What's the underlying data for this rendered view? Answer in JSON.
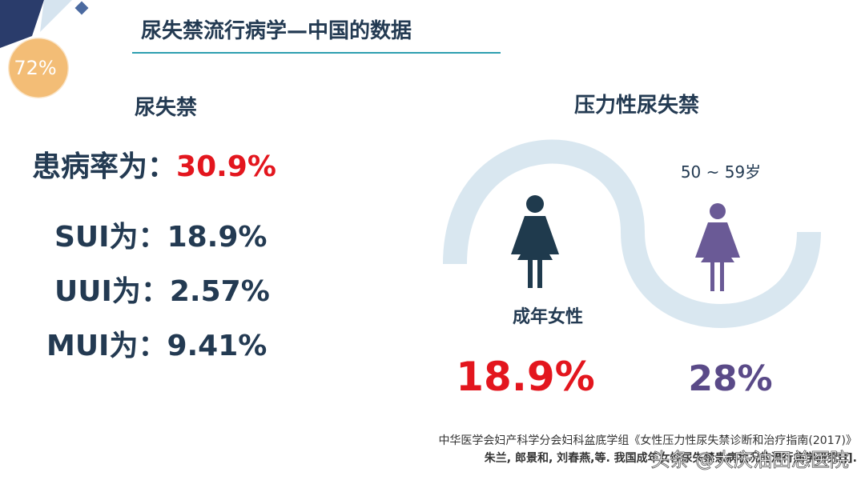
{
  "badge": "72%",
  "header": {
    "title": "尿失禁流行病学—中国的数据"
  },
  "left": {
    "heading": "尿失禁",
    "prevalence": {
      "label": "患病率为：",
      "value": "30.9%"
    },
    "rows": [
      {
        "label": "SUI为：",
        "value": "18.9%"
      },
      {
        "label": "UUI为：",
        "value": "2.57%"
      },
      {
        "label": "MUI为：",
        "value": "9.41%"
      }
    ]
  },
  "right": {
    "heading": "压力性尿失禁",
    "groups": [
      {
        "label": "成年女性",
        "value": "18.9%"
      },
      {
        "label": "50 ~ 59岁",
        "value": "28%"
      }
    ]
  },
  "references": [
    "中华医学会妇产科学分会妇科盆底学组《女性压力性尿失禁诊断和治疗指南(2017)》",
    "朱兰, 郎景和, 刘春燕,等. 我国成年女性尿失禁患病状况的流行病学研究[J]."
  ],
  "watermark": "头条 @大庆油田总医院"
}
